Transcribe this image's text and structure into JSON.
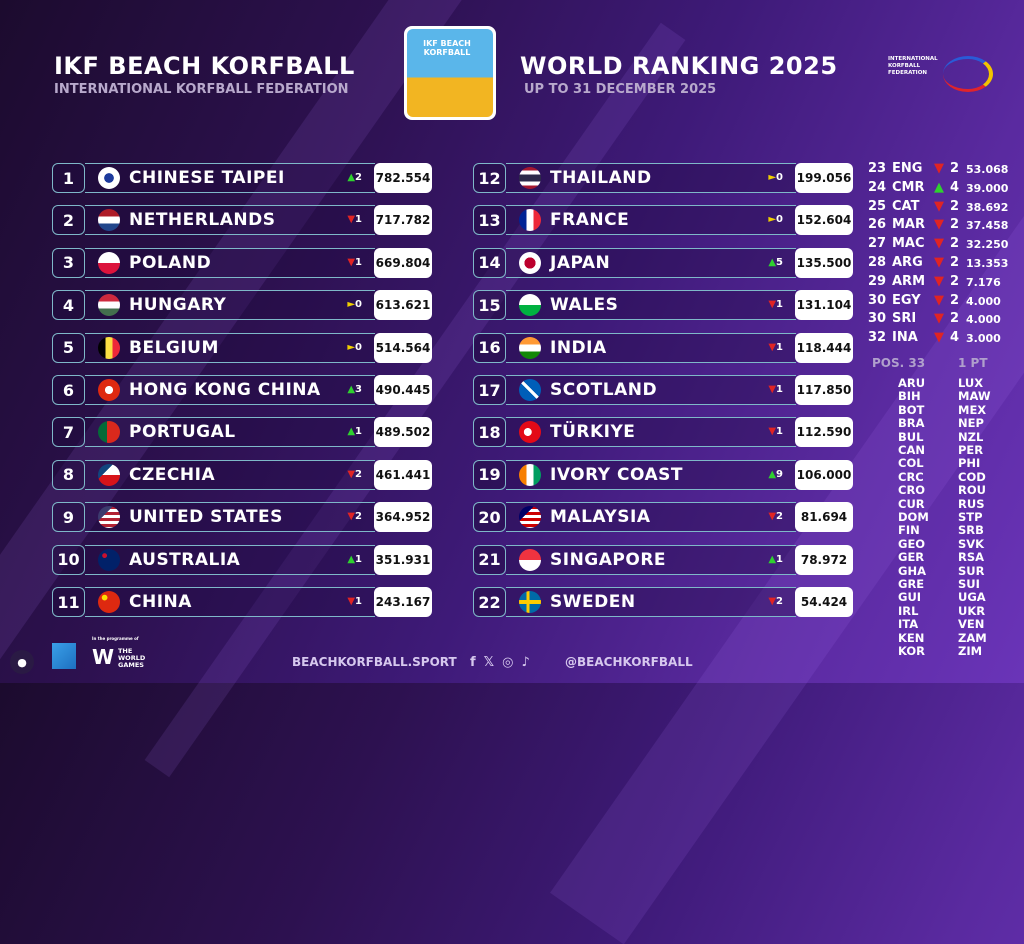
{
  "header": {
    "title_left": "IKF BEACH KORFBALL",
    "subtitle_left": "INTERNATIONAL KORFBALL FEDERATION",
    "title_right": "WORLD RANKING 2025",
    "subtitle_right": "UP TO 31 DECEMBER 2025",
    "logo_text": "IKF BEACH KORFBALL",
    "federation_logo_text": "INTERNATIONAL KORFBALL FEDERATION"
  },
  "colors": {
    "up": "#2fd12f",
    "down": "#e02424",
    "same": "#f0d000",
    "background": "#3e1a78"
  },
  "rankings": [
    {
      "rank": "1",
      "name": "CHINESE TAIPEI",
      "dir": "up",
      "change": "2",
      "score": "782.554",
      "flag": "tpe"
    },
    {
      "rank": "2",
      "name": "NETHERLANDS",
      "dir": "down",
      "change": "1",
      "score": "717.782",
      "flag": "ned"
    },
    {
      "rank": "3",
      "name": "POLAND",
      "dir": "down",
      "change": "1",
      "score": "669.804",
      "flag": "pol"
    },
    {
      "rank": "4",
      "name": "HUNGARY",
      "dir": "same",
      "change": "0",
      "score": "613.621",
      "flag": "hun"
    },
    {
      "rank": "5",
      "name": "BELGIUM",
      "dir": "same",
      "change": "0",
      "score": "514.564",
      "flag": "bel"
    },
    {
      "rank": "6",
      "name": "HONG KONG CHINA",
      "dir": "up",
      "change": "3",
      "score": "490.445",
      "flag": "hkg"
    },
    {
      "rank": "7",
      "name": "PORTUGAL",
      "dir": "up",
      "change": "1",
      "score": "489.502",
      "flag": "por"
    },
    {
      "rank": "8",
      "name": "CZECHIA",
      "dir": "down",
      "change": "2",
      "score": "461.441",
      "flag": "cze"
    },
    {
      "rank": "9",
      "name": "UNITED STATES",
      "dir": "down",
      "change": "2",
      "score": "364.952",
      "flag": "usa"
    },
    {
      "rank": "10",
      "name": "AUSTRALIA",
      "dir": "up",
      "change": "1",
      "score": "351.931",
      "flag": "aus"
    },
    {
      "rank": "11",
      "name": "CHINA",
      "dir": "down",
      "change": "1",
      "score": "243.167",
      "flag": "chn"
    },
    {
      "rank": "12",
      "name": "THAILAND",
      "dir": "same",
      "change": "0",
      "score": "199.056",
      "flag": "tha"
    },
    {
      "rank": "13",
      "name": "FRANCE",
      "dir": "same",
      "change": "0",
      "score": "152.604",
      "flag": "fra"
    },
    {
      "rank": "14",
      "name": "JAPAN",
      "dir": "up",
      "change": "5",
      "score": "135.500",
      "flag": "jpn"
    },
    {
      "rank": "15",
      "name": "WALES",
      "dir": "down",
      "change": "1",
      "score": "131.104",
      "flag": "wal"
    },
    {
      "rank": "16",
      "name": "INDIA",
      "dir": "down",
      "change": "1",
      "score": "118.444",
      "flag": "ind"
    },
    {
      "rank": "17",
      "name": "SCOTLAND",
      "dir": "down",
      "change": "1",
      "score": "117.850",
      "flag": "sco"
    },
    {
      "rank": "18",
      "name": "TÜRKIYE",
      "dir": "down",
      "change": "1",
      "score": "112.590",
      "flag": "tur"
    },
    {
      "rank": "19",
      "name": "IVORY COAST",
      "dir": "up",
      "change": "9",
      "score": "106.000",
      "flag": "civ"
    },
    {
      "rank": "20",
      "name": "MALAYSIA",
      "dir": "down",
      "change": "2",
      "score": "81.694",
      "flag": "mas"
    },
    {
      "rank": "21",
      "name": "SINGAPORE",
      "dir": "up",
      "change": "1",
      "score": "78.972",
      "flag": "sgp"
    },
    {
      "rank": "22",
      "name": "SWEDEN",
      "dir": "down",
      "change": "2",
      "score": "54.424",
      "flag": "swe"
    }
  ],
  "side_rankings": [
    {
      "rank": "23",
      "code": "ENG",
      "dir": "down",
      "change": "2",
      "score": "53.068"
    },
    {
      "rank": "24",
      "code": "CMR",
      "dir": "up",
      "change": "4",
      "score": "39.000"
    },
    {
      "rank": "25",
      "code": "CAT",
      "dir": "down",
      "change": "2",
      "score": "38.692"
    },
    {
      "rank": "26",
      "code": "MAR",
      "dir": "down",
      "change": "2",
      "score": "37.458"
    },
    {
      "rank": "27",
      "code": "MAC",
      "dir": "down",
      "change": "2",
      "score": "32.250"
    },
    {
      "rank": "28",
      "code": "ARG",
      "dir": "down",
      "change": "2",
      "score": "13.353"
    },
    {
      "rank": "29",
      "code": "ARM",
      "dir": "down",
      "change": "2",
      "score": "7.176"
    },
    {
      "rank": "30",
      "code": "EGY",
      "dir": "down",
      "change": "2",
      "score": "4.000"
    },
    {
      "rank": "30",
      "code": "SRI",
      "dir": "down",
      "change": "2",
      "score": "4.000"
    },
    {
      "rank": "32",
      "code": "INA",
      "dir": "down",
      "change": "4",
      "score": "3.000"
    }
  ],
  "tail": {
    "pos_label": "POS. 33",
    "pts_label": "1 PT",
    "codes_left": [
      "ARU",
      "BIH",
      "BOT",
      "BRA",
      "BUL",
      "CAN",
      "COL",
      "CRC",
      "CRO",
      "CUR",
      "DOM",
      "FIN",
      "GEO",
      "GER",
      "GHA",
      "GRE",
      "GUI",
      "IRL",
      "ITA",
      "KEN",
      "KOR"
    ],
    "codes_right": [
      "LUX",
      "MAW",
      "MEX",
      "NEP",
      "NZL",
      "PER",
      "PHI",
      "COD",
      "ROU",
      "RUS",
      "STP",
      "SRB",
      "SVK",
      "RSA",
      "SUR",
      "SUI",
      "UGA",
      "UKR",
      "VEN",
      "ZAM",
      "ZIM"
    ]
  },
  "footer": {
    "programme_label": "In the programme of",
    "world_games": "THE WORLD GAMES",
    "website": "BEACHKORFBALL.SPORT",
    "handle": "@BEACHKORFBALL",
    "social_icons": [
      "facebook-icon",
      "x-icon",
      "instagram-icon",
      "tiktok-icon"
    ]
  }
}
